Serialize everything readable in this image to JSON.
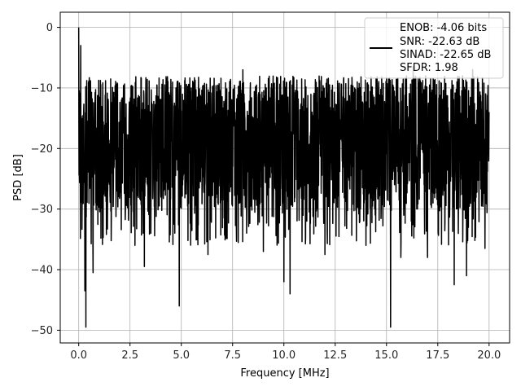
{
  "chart_data": {
    "type": "line",
    "title": "",
    "xlabel": "Frequency [MHz]",
    "ylabel": "PSD [dB]",
    "xlim": [
      -0.9,
      21.0
    ],
    "ylim": [
      -52.1,
      2.5
    ],
    "xticks": [
      0.0,
      2.5,
      5.0,
      7.5,
      10.0,
      12.5,
      15.0,
      17.5,
      20.0
    ],
    "xtick_labels": [
      "0.0",
      "2.5",
      "5.0",
      "7.5",
      "10.0",
      "12.5",
      "15.0",
      "17.5",
      "20.0"
    ],
    "yticks": [
      0,
      -10,
      -20,
      -30,
      -40,
      -50
    ],
    "ytick_labels": [
      "0",
      "−10",
      "−20",
      "−30",
      "−40",
      "−50"
    ],
    "grid": true,
    "legend_position": "top-right",
    "legend_lines": [
      "ENOB: -4.06 bits",
      "SNR: -22.63 dB",
      "SINAD: -22.65 dB",
      "SFDR: 1.98"
    ],
    "series": [
      {
        "color": "#000000",
        "x_range": [
          0.0,
          20.0
        ],
        "noise_upper_approx": -8,
        "noise_center_approx": -18,
        "noise_lower_approx": -30,
        "peaks": [
          {
            "x": 0.0,
            "y": 0.0
          },
          {
            "x": 0.1,
            "y": -3.0
          },
          {
            "x": 16.3,
            "y": -6.5
          },
          {
            "x": 19.2,
            "y": -7.0
          },
          {
            "x": 8.0,
            "y": -7.0
          }
        ],
        "dips": [
          {
            "x": 0.35,
            "y": -49.5
          },
          {
            "x": 0.3,
            "y": -43.5
          },
          {
            "x": 0.7,
            "y": -40.5
          },
          {
            "x": 3.2,
            "y": -39.5
          },
          {
            "x": 4.9,
            "y": -46.0
          },
          {
            "x": 6.3,
            "y": -37.5
          },
          {
            "x": 9.0,
            "y": -37.0
          },
          {
            "x": 10.0,
            "y": -42.0
          },
          {
            "x": 10.3,
            "y": -44.0
          },
          {
            "x": 12.0,
            "y": -37.5
          },
          {
            "x": 14.0,
            "y": -36.0
          },
          {
            "x": 15.2,
            "y": -49.5
          },
          {
            "x": 15.7,
            "y": -38.0
          },
          {
            "x": 17.0,
            "y": -38.0
          },
          {
            "x": 18.3,
            "y": -42.5
          },
          {
            "x": 18.9,
            "y": -41.0
          },
          {
            "x": 19.8,
            "y": -36.5
          }
        ]
      }
    ]
  }
}
